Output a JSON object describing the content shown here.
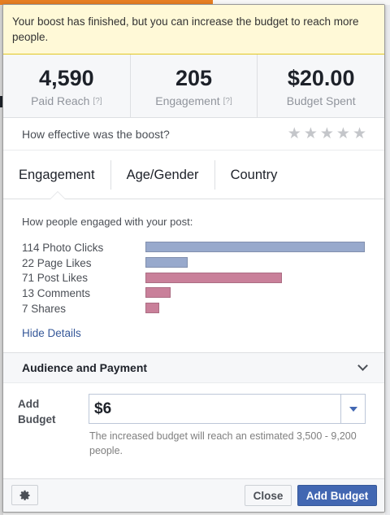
{
  "notice": {
    "text": "Your boost has finished, but you can increase the budget to reach more people."
  },
  "stats": [
    {
      "value": "4,590",
      "label": "Paid Reach",
      "help": "[?]"
    },
    {
      "value": "205",
      "label": "Engagement",
      "help": "[?]"
    },
    {
      "value": "$20.00",
      "label": "Budget Spent",
      "help": ""
    }
  ],
  "rating": {
    "question": "How effective was the boost?",
    "stars_total": 5,
    "stars_filled": 0,
    "star_color": "#c4c6ca"
  },
  "tabs": [
    {
      "label": "Engagement",
      "selected": true
    },
    {
      "label": "Age/Gender",
      "selected": false
    },
    {
      "label": "Country",
      "selected": false
    }
  ],
  "engagement": {
    "heading": "How people engaged with your post:",
    "items": [
      {
        "label": "114 Photo Clicks",
        "count": 114,
        "color": "#98a9cc"
      },
      {
        "label": "22 Page Likes",
        "count": 22,
        "color": "#98a9cc"
      },
      {
        "label": "71 Post Likes",
        "count": 71,
        "color": "#c9809a"
      },
      {
        "label": "13 Comments",
        "count": 13,
        "color": "#c9809a"
      },
      {
        "label": "7 Shares",
        "count": 7,
        "color": "#c9809a"
      }
    ],
    "hide_details": "Hide Details"
  },
  "audience": {
    "title": "Audience and Payment",
    "icon": "chevron-down-icon"
  },
  "budget": {
    "label": "Add Budget",
    "value": "$6",
    "note": "The increased budget will reach an estimated 3,500 - 9,200 people."
  },
  "footer": {
    "settings_icon": "gear-icon",
    "close_label": "Close",
    "add_budget_label": "Add Budget"
  },
  "colors": {
    "accent": "#4267b2",
    "notice_bg": "#fff9d7",
    "link": "#365899"
  }
}
